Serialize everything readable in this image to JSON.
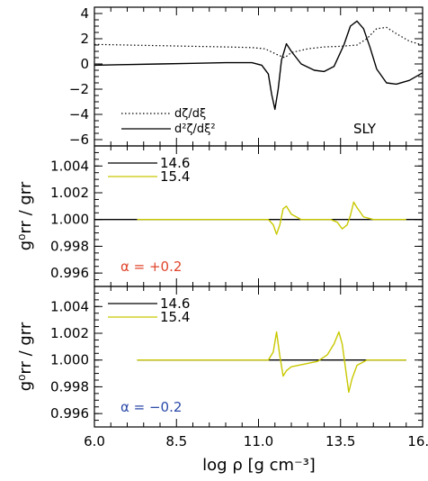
{
  "figure": {
    "x_axis_label": "log ρ [g cm⁻³]",
    "x_ticks": [
      "6.0",
      "8.5",
      "11.0",
      "13.5",
      "16.0"
    ]
  },
  "chart_data": [
    {
      "type": "line",
      "panel": "top",
      "annotation": "SLY",
      "xlim": [
        6.0,
        16.0
      ],
      "ylim": [
        -6.5,
        4.5
      ],
      "yticks": [
        -6,
        -4,
        -2,
        0,
        2,
        4
      ],
      "ytick_labels": [
        "−6",
        "−4",
        "−2",
        "0",
        "2",
        "4"
      ],
      "grid": false,
      "legend_position": "bottom-left",
      "series": [
        {
          "name": "dζ/dξ",
          "style": "dotted",
          "color": "#000000",
          "x": [
            6.0,
            7.0,
            8.0,
            9.0,
            10.0,
            10.8,
            11.2,
            11.6,
            11.8,
            12.0,
            12.5,
            13.0,
            13.5,
            14.0,
            14.3,
            14.6,
            14.9,
            15.2,
            15.6,
            16.0
          ],
          "y": [
            1.55,
            1.5,
            1.45,
            1.4,
            1.35,
            1.3,
            1.2,
            0.7,
            0.5,
            0.9,
            1.2,
            1.35,
            1.4,
            1.5,
            2.0,
            2.8,
            2.9,
            2.4,
            1.8,
            1.5
          ]
        },
        {
          "name": "d²ζ/dξ²",
          "style": "solid",
          "color": "#000000",
          "x": [
            6.0,
            7.0,
            8.0,
            9.0,
            10.0,
            10.8,
            11.1,
            11.3,
            11.4,
            11.5,
            11.6,
            11.7,
            11.85,
            12.0,
            12.3,
            12.7,
            13.0,
            13.3,
            13.6,
            13.8,
            14.0,
            14.2,
            14.4,
            14.6,
            14.9,
            15.2,
            15.6,
            16.0
          ],
          "y": [
            -0.1,
            -0.05,
            0.0,
            0.05,
            0.1,
            0.1,
            -0.1,
            -0.8,
            -2.4,
            -3.6,
            -2.0,
            0.3,
            1.6,
            1.0,
            0.0,
            -0.5,
            -0.6,
            -0.2,
            1.5,
            3.0,
            3.4,
            2.8,
            1.3,
            -0.4,
            -1.5,
            -1.6,
            -1.3,
            -0.7
          ]
        }
      ]
    },
    {
      "type": "line",
      "panel": "middle",
      "annotation": "α = +0.2",
      "annotation_color": "#e0452b",
      "ylabel": "g⁰rr / grr",
      "xlim": [
        6.0,
        16.0
      ],
      "ylim": [
        0.995,
        1.0055
      ],
      "yticks": [
        0.996,
        0.998,
        1.0,
        1.002,
        1.004
      ],
      "ytick_labels": [
        "0.996",
        "0.998",
        "1.000",
        "1.002",
        "1.004"
      ],
      "grid": false,
      "legend_position": "top-left",
      "series": [
        {
          "name": "14.6",
          "color": "#000000",
          "x": [
            6.0,
            16.0
          ],
          "y": [
            1.0,
            1.0
          ]
        },
        {
          "name": "15.4",
          "color": "#c8c800",
          "x": [
            7.3,
            11.0,
            11.3,
            11.45,
            11.55,
            11.65,
            11.75,
            11.85,
            12.0,
            12.3,
            12.8,
            13.2,
            13.4,
            13.55,
            13.7,
            13.8,
            13.9,
            14.0,
            14.2,
            14.5,
            15.5
          ],
          "y": [
            1.0,
            1.0,
            1.0,
            0.9996,
            0.9989,
            0.9996,
            1.0008,
            1.001,
            1.0004,
            1.0,
            1.0,
            1.0,
            0.9998,
            0.9993,
            0.9996,
            1.0003,
            1.0013,
            1.0009,
            1.0002,
            1.0,
            1.0
          ]
        }
      ]
    },
    {
      "type": "line",
      "panel": "bottom",
      "annotation": "α = −0.2",
      "annotation_color": "#2b4aa8",
      "ylabel": "g⁰rr / grr",
      "xlim": [
        6.0,
        16.0
      ],
      "ylim": [
        0.995,
        1.0055
      ],
      "yticks": [
        0.996,
        0.998,
        1.0,
        1.002,
        1.004
      ],
      "ytick_labels": [
        "0.996",
        "0.998",
        "1.000",
        "1.002",
        "1.004"
      ],
      "grid": false,
      "legend_position": "top-left",
      "series": [
        {
          "name": "14.6",
          "color": "#000000",
          "x": [
            7.3,
            15.5
          ],
          "y": [
            1.0,
            1.0
          ]
        },
        {
          "name": "15.4",
          "color": "#c8c800",
          "x": [
            7.3,
            11.0,
            11.3,
            11.45,
            11.55,
            11.65,
            11.75,
            11.85,
            12.0,
            12.4,
            12.8,
            13.1,
            13.3,
            13.45,
            13.55,
            13.65,
            13.75,
            13.85,
            14.0,
            14.3,
            15.5
          ],
          "y": [
            1.0,
            1.0,
            1.0,
            1.0006,
            1.0021,
            1.0003,
            0.9988,
            0.9992,
            0.9995,
            0.9997,
            0.9999,
            1.0004,
            1.0012,
            1.0021,
            1.0012,
            0.9994,
            0.9976,
            0.9986,
            0.9996,
            1.0,
            1.0
          ]
        }
      ]
    }
  ]
}
